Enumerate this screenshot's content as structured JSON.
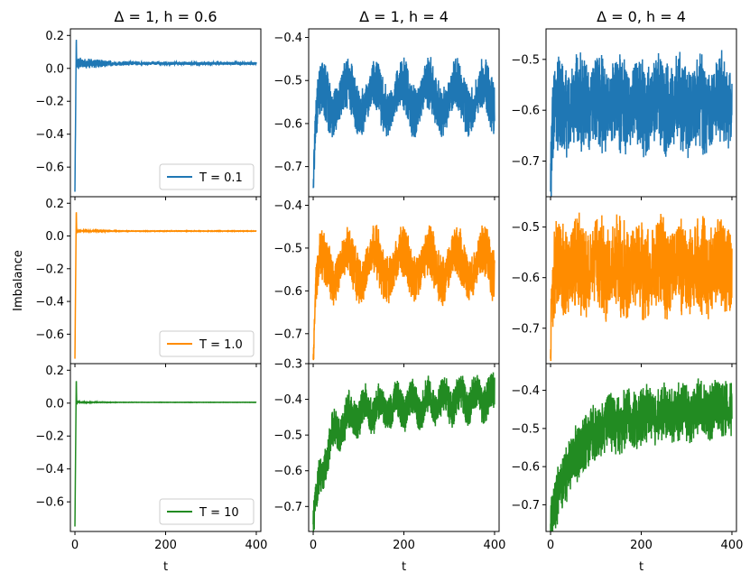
{
  "chart_data": {
    "type": "line",
    "ylabel": "Imbalance",
    "xlabel": "t",
    "xlim": [
      -10,
      410
    ],
    "xticks": [
      0,
      200,
      400
    ],
    "columns": [
      {
        "title": "Δ = 1, h = 0.6"
      },
      {
        "title": "Δ = 1, h = 4"
      },
      {
        "title": "Δ = 0, h = 4"
      }
    ],
    "rows": [
      {
        "legend": "T = 0.1",
        "color": "#1f77b4"
      },
      {
        "legend": "T = 1.0",
        "color": "#ff8c00"
      },
      {
        "legend": "T = 10",
        "color": "#228b22"
      }
    ],
    "panels": [
      {
        "row": 0,
        "col": 0,
        "ylim": [
          -0.78,
          0.24
        ],
        "yticks": [
          0.2,
          0.0,
          -0.2,
          -0.4,
          -0.6
        ],
        "ytick_labels": [
          "0.2",
          "0.0",
          "−0.2",
          "−0.4",
          "−0.6"
        ],
        "shape": "decay",
        "start": -0.75,
        "peak": 0.2,
        "peak_t": 3,
        "final": 0.03,
        "tau": 0.7,
        "ripple": 0.025,
        "slow_amp": 0,
        "slow_period": 80,
        "noise": 0.018,
        "legend_loc": "lower right"
      },
      {
        "row": 0,
        "col": 1,
        "ylim": [
          -0.77,
          -0.38
        ],
        "yticks": [
          -0.4,
          -0.5,
          -0.6,
          -0.7
        ],
        "ytick_labels": [
          "−0.4",
          "−0.5",
          "−0.6",
          "−0.7"
        ],
        "shape": "oscillate",
        "start": -0.75,
        "final": -0.54,
        "tau": 6,
        "ripple": 0.05,
        "slow_amp": 0.035,
        "slow_period": 60,
        "noise": 0.018
      },
      {
        "row": 0,
        "col": 2,
        "ylim": [
          -0.77,
          -0.44
        ],
        "yticks": [
          -0.5,
          -0.6,
          -0.7
        ],
        "ytick_labels": [
          "−0.5",
          "−0.6",
          "−0.7"
        ],
        "shape": "oscillate",
        "start": -0.76,
        "final": -0.59,
        "tau": 4,
        "ripple": 0.07,
        "slow_amp": 0.01,
        "slow_period": 45,
        "noise": 0.035
      },
      {
        "row": 1,
        "col": 0,
        "ylim": [
          -0.78,
          0.24
        ],
        "yticks": [
          0.2,
          0.0,
          -0.2,
          -0.4,
          -0.6
        ],
        "ytick_labels": [
          "0.2",
          "0.0",
          "−0.2",
          "−0.4",
          "−0.6"
        ],
        "shape": "decay",
        "start": -0.75,
        "peak": 0.18,
        "peak_t": 3,
        "final": 0.03,
        "tau": 0.6,
        "ripple": 0.004,
        "slow_amp": 0,
        "slow_period": 80,
        "noise": 0.002,
        "legend_loc": "lower right"
      },
      {
        "row": 1,
        "col": 1,
        "ylim": [
          -0.77,
          -0.38
        ],
        "yticks": [
          -0.4,
          -0.5,
          -0.6,
          -0.7
        ],
        "ytick_labels": [
          "−0.4",
          "−0.5",
          "−0.6",
          "−0.7"
        ],
        "shape": "oscillate",
        "start": -0.76,
        "final": -0.54,
        "tau": 6,
        "ripple": 0.05,
        "slow_amp": 0.035,
        "slow_period": 60,
        "noise": 0.018
      },
      {
        "row": 1,
        "col": 2,
        "ylim": [
          -0.77,
          -0.44
        ],
        "yticks": [
          -0.5,
          -0.6,
          -0.7
        ],
        "ytick_labels": [
          "−0.5",
          "−0.6",
          "−0.7"
        ],
        "shape": "oscillate",
        "start": -0.76,
        "final": -0.58,
        "tau": 4,
        "ripple": 0.07,
        "slow_amp": 0.01,
        "slow_period": 45,
        "noise": 0.035
      },
      {
        "row": 2,
        "col": 0,
        "ylim": [
          -0.78,
          0.24
        ],
        "yticks": [
          0.2,
          0.0,
          -0.2,
          -0.4,
          -0.6
        ],
        "ytick_labels": [
          "0.2",
          "0.0",
          "−0.2",
          "−0.4",
          "−0.6"
        ],
        "shape": "decay",
        "start": -0.75,
        "peak": 0.17,
        "peak_t": 3,
        "final": 0.005,
        "tau": 0.6,
        "ripple": 0.002,
        "slow_amp": 0,
        "slow_period": 80,
        "noise": 0.001,
        "legend_loc": "lower right"
      },
      {
        "row": 2,
        "col": 1,
        "ylim": [
          -0.77,
          -0.3
        ],
        "yticks": [
          -0.3,
          -0.4,
          -0.5,
          -0.6,
          -0.7
        ],
        "ytick_labels": [
          "−0.3",
          "−0.4",
          "−0.5",
          "−0.6",
          "−0.7"
        ],
        "shape": "rise",
        "start": -0.75,
        "final": -0.4,
        "slope": 0.00012,
        "tau": 30,
        "ripple": 0.04,
        "slow_amp": 0.025,
        "slow_period": 35,
        "noise": 0.015
      },
      {
        "row": 2,
        "col": 2,
        "ylim": [
          -0.77,
          -0.33
        ],
        "yticks": [
          -0.4,
          -0.5,
          -0.6,
          -0.7
        ],
        "ytick_labels": [
          "−0.4",
          "−0.5",
          "−0.6",
          "−0.7"
        ],
        "shape": "rise",
        "start": -0.75,
        "final": -0.45,
        "slope": 0.00012,
        "tau": 50,
        "ripple": 0.05,
        "slow_amp": 0.008,
        "slow_period": 40,
        "noise": 0.03
      }
    ]
  }
}
